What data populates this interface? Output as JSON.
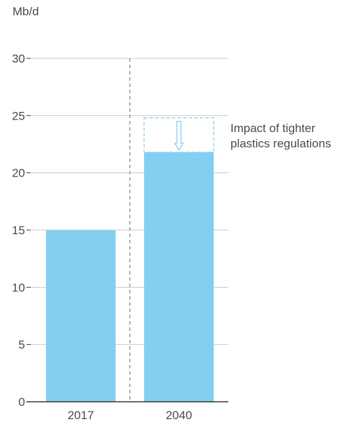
{
  "chart_data": {
    "type": "bar",
    "ylabel": "Mb/d",
    "categories": [
      "2017",
      "2040"
    ],
    "values": [
      15,
      21.8
    ],
    "ylim": [
      0,
      30
    ],
    "yticks": [
      0,
      5,
      10,
      15,
      20,
      25,
      30
    ],
    "grid": true,
    "legend": "none",
    "bar_color": "#82cff1",
    "impact": {
      "category": "2040",
      "from": 24.8,
      "to": 21.8,
      "style": "dashed-outline",
      "label_lines": [
        "Impact of tighter",
        "plastics regulations"
      ]
    },
    "separator": "dashed-vertical-between-categories"
  },
  "colors": {
    "bar": "#82cff1",
    "grid": "#c8c8c8",
    "axis": "#333333",
    "separator": "#888888",
    "text": "#4a4a4a"
  }
}
